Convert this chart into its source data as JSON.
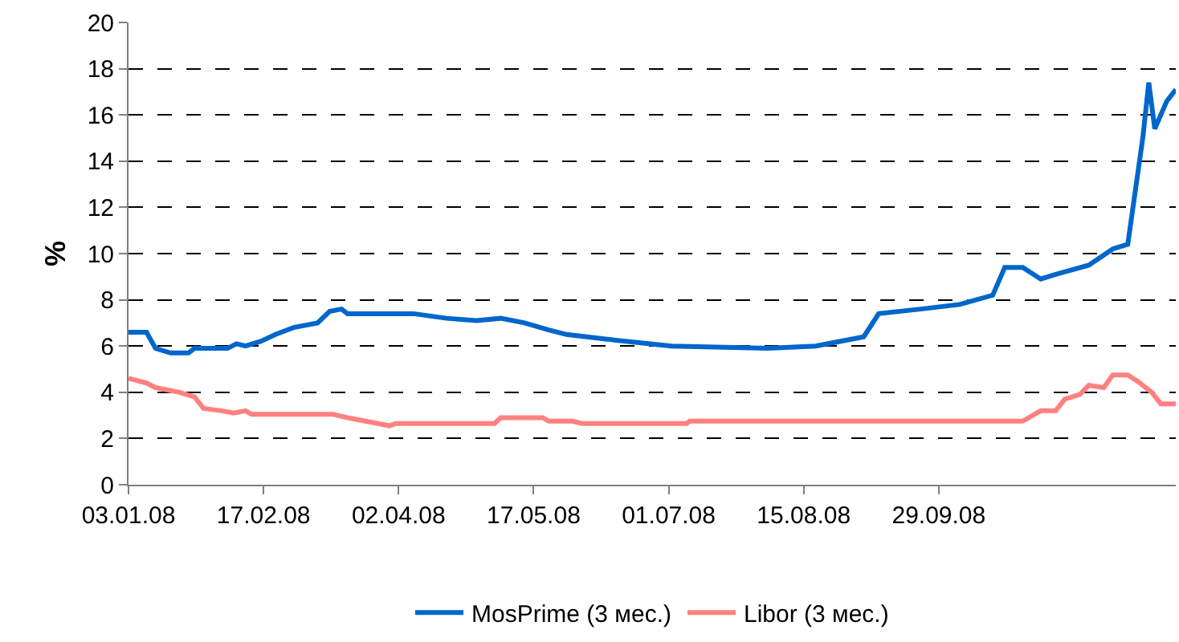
{
  "chart_data": {
    "type": "line",
    "ylabel": "%",
    "legend": "bottom",
    "grid": "y",
    "line_style": "solid",
    "marker": "none",
    "xlim": [
      "2008-01-03",
      "2008-12-17"
    ],
    "ylim": [
      0,
      20
    ],
    "yticks": [
      0,
      2,
      4,
      6,
      8,
      10,
      12,
      14,
      16,
      18,
      20
    ],
    "xticks": [
      {
        "value": "2008-01-03",
        "label": "03.01.08"
      },
      {
        "value": "2008-02-17",
        "label": "17.02.08"
      },
      {
        "value": "2008-04-02",
        "label": "02.04.08"
      },
      {
        "value": "2008-05-17",
        "label": "17.05.08"
      },
      {
        "value": "2008-07-01",
        "label": "01.07.08"
      },
      {
        "value": "2008-08-15",
        "label": "15.08.08"
      },
      {
        "value": "2008-09-29",
        "label": "29.09.08"
      }
    ],
    "series": [
      {
        "name": "MosPrime (3 мес.)",
        "color": "#0066cc",
        "x": [
          "2008-01-03",
          "2008-01-09",
          "2008-01-12",
          "2008-01-17",
          "2008-01-23",
          "2008-01-25",
          "2008-02-05",
          "2008-02-08",
          "2008-02-11",
          "2008-02-16",
          "2008-02-21",
          "2008-02-27",
          "2008-03-06",
          "2008-03-10",
          "2008-03-14",
          "2008-03-16",
          "2008-03-24",
          "2008-04-01",
          "2008-04-07",
          "2008-04-18",
          "2008-04-28",
          "2008-05-06",
          "2008-05-14",
          "2008-05-22",
          "2008-05-28",
          "2008-06-10",
          "2008-07-02",
          "2008-08-03",
          "2008-08-19",
          "2008-09-04",
          "2008-09-09",
          "2008-09-23",
          "2008-10-06",
          "2008-10-17",
          "2008-10-21",
          "2008-10-27",
          "2008-11-02",
          "2008-11-07",
          "2008-11-18",
          "2008-11-26",
          "2008-12-01",
          "2008-12-06",
          "2008-12-08",
          "2008-12-10",
          "2008-12-14",
          "2008-12-17"
        ],
        "values": [
          6.6,
          6.6,
          5.9,
          5.7,
          5.7,
          5.9,
          5.9,
          6.1,
          6.0,
          6.2,
          6.5,
          6.8,
          7.0,
          7.5,
          7.6,
          7.4,
          7.4,
          7.4,
          7.4,
          7.2,
          7.1,
          7.2,
          7.0,
          6.7,
          6.5,
          6.3,
          6.0,
          5.9,
          6.0,
          6.4,
          7.4,
          7.6,
          7.8,
          8.2,
          9.4,
          9.4,
          8.9,
          9.1,
          9.5,
          10.2,
          10.4,
          15.0,
          17.4,
          15.4,
          16.6,
          17.1
        ]
      },
      {
        "name": "Libor (3 мес.)",
        "color": "#ff8080",
        "x": [
          "2008-01-03",
          "2008-01-09",
          "2008-01-12",
          "2008-01-20",
          "2008-01-25",
          "2008-01-28",
          "2008-02-03",
          "2008-02-07",
          "2008-02-11",
          "2008-02-13",
          "2008-03-11",
          "2008-03-16",
          "2008-03-24",
          "2008-03-30",
          "2008-04-01",
          "2008-05-04",
          "2008-05-06",
          "2008-05-20",
          "2008-05-22",
          "2008-05-30",
          "2008-06-02",
          "2008-07-07",
          "2008-07-08",
          "2008-10-27",
          "2008-11-02",
          "2008-11-07",
          "2008-11-10",
          "2008-11-15",
          "2008-11-18",
          "2008-11-23",
          "2008-11-26",
          "2008-12-01",
          "2008-12-04",
          "2008-12-09",
          "2008-12-12",
          "2008-12-17"
        ],
        "values": [
          4.6,
          4.4,
          4.2,
          4.0,
          3.8,
          3.3,
          3.2,
          3.1,
          3.2,
          3.05,
          3.05,
          2.9,
          2.7,
          2.55,
          2.65,
          2.65,
          2.9,
          2.9,
          2.75,
          2.75,
          2.65,
          2.65,
          2.75,
          2.75,
          3.2,
          3.2,
          3.7,
          3.9,
          4.3,
          4.2,
          4.75,
          4.75,
          4.5,
          4.0,
          3.5,
          3.5
        ]
      }
    ]
  }
}
